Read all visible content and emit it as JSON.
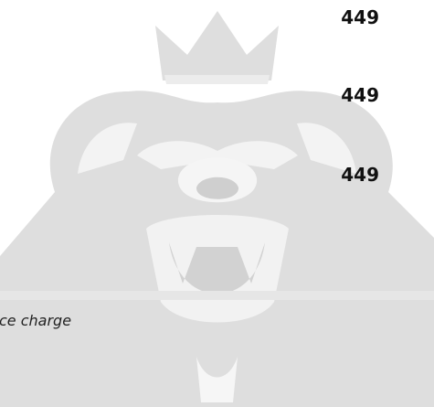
{
  "prices": [
    449,
    449,
    449
  ],
  "note": "ce charge"
}
